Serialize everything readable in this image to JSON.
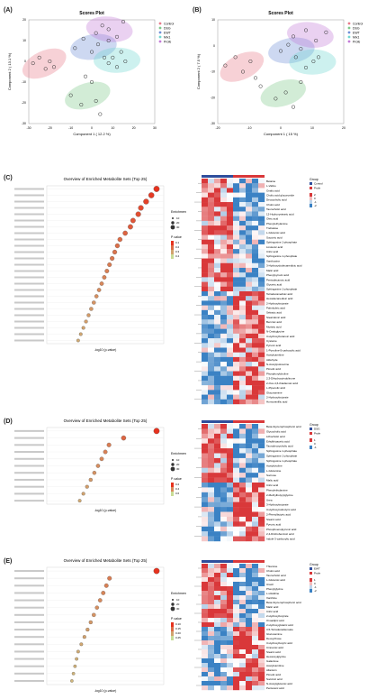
{
  "panels": {
    "A": {
      "letter": "(A)",
      "title": "Scores Plot",
      "xlabel": "Component 1 ( 12.2 %)",
      "ylabel": "Component 2 ( 13.1 %)",
      "legend": [
        "Control",
        "DSG",
        "EWT",
        "Mix1",
        "Profe"
      ],
      "xticks": [
        "-30",
        "-20",
        "-10",
        "0",
        "10",
        "20",
        "30"
      ],
      "yticks": [
        "20",
        "10",
        "0",
        "-10",
        "-20",
        "-30"
      ]
    },
    "B": {
      "letter": "(B)",
      "title": "Scores Plot",
      "xlabel": "Component 1 ( 15 %)",
      "ylabel": "Component 2 ( 7.5 %)",
      "legend": [
        "Control",
        "DSG",
        "EWT",
        "Mix1",
        "Profe"
      ],
      "xticks": [
        "-20",
        "-10",
        "0",
        "10",
        "20"
      ],
      "yticks": [
        "10",
        "0",
        "-10",
        "-20",
        "-30"
      ]
    },
    "C": {
      "letter": "(C)",
      "title": "Overview of Enriched Metabolite Sets (Top 25)",
      "xlabel": "-log10 (p-value)",
      "legend_title": "Enrichment Ratio",
      "pvalue_title": "P-value",
      "size_legend": [
        "10",
        "20",
        "30"
      ],
      "p_legend": [
        "0.1",
        "0.2",
        "0.3",
        "0.4"
      ],
      "heat_legend_title": "Group",
      "heat_groups": [
        "Control",
        "Profe"
      ],
      "heat_scale": [
        "2",
        "0",
        "-1",
        "-2"
      ],
      "metabolites": [
        "Betaine",
        "L-Valine",
        "Oxalic acid",
        "Cholic acid glucoronide",
        "Deoxycholic acid",
        "Cholic acid",
        "Taurocholic acid",
        "12-Hydroxystearic acid",
        "Oleic acid",
        "Phenylethylamine",
        "Trehalose",
        "L-Glutamic acid",
        "Succinic acid",
        "Sphingosine 1-phosphate",
        "Linolenic acid",
        "Citric acid",
        "Sphinganine 1-phosphate",
        "Xanthosine",
        "3-Hydroxydodecanedioic acid",
        "Malic acid",
        "Phenylpyruvic acid",
        "Pentadecanoic acid",
        "Glyceric acid",
        "Sphinganine 1-phosphate",
        "Tetradecanedioic acid",
        "Hexadecanedioic acid",
        "2-Hydroxybutyrate",
        "Palmitoleic acid",
        "Sebacic acid",
        "Stearidonic acid",
        "Benzoic acid",
        "Myristic acid",
        "N-Oxalyglycine",
        "3-Hydroxybutanoic acid",
        "Cysteine",
        "Pyruvic acid",
        "1-Pyrroline-5-carboxylic acid",
        "Acetylcarnitine",
        "Aldehyde",
        "N-Acetylputrescine",
        "Pimelic acid",
        "Phosphorylcholine",
        "2,3-Dihydroxyindolinone",
        "2-Oxo-4,6-thiadienoic acid",
        "L-Pipecolic acid",
        "Glucosamine",
        "2-Hydroxybutyrate",
        "Homovanillic acid"
      ]
    },
    "D": {
      "letter": "(D)",
      "title": "Overview of Enriched Metabolite Sets (Top 25)",
      "xlabel": "-log10 (p-value)",
      "legend_title": "Enrichment Ratio",
      "pvalue_title": "P-value",
      "size_legend": [
        "10",
        "20",
        "30"
      ],
      "p_legend": [
        "0.2",
        "0.4",
        "0.6"
      ],
      "heat_legend_title": "Group",
      "heat_groups": [
        "DSG",
        "Profe"
      ],
      "heat_scale": [
        "1",
        "0",
        "-1"
      ],
      "metabolites": [
        "Beta-Glycerophosphoric acid",
        "Glycocholic acid",
        "Lithocholic acid",
        "Ethylthioacetic acid",
        "Taurodeoxycholic acid",
        "Sphingosine 1-phosphate",
        "Sphinganine 1-phosphate",
        "Sphingosine 1-phosphate",
        "Acetylcholine",
        "L-Glutamine",
        "Sucrose",
        "Malic acid",
        "Citric acid",
        "Phenylethylamine",
        "2-Methylbutyrylglycine",
        "Urea",
        "3-Hydroxybutyrate",
        "3-Hydroxyisobutyric acid",
        "2-Phenylbutyric acid",
        "Stearic acid",
        "Pyruvic acid",
        "Phosphoenolpyruvic acid",
        "2,4-Dinitrobenzoic acid",
        "Indole-3-carboxylic acid"
      ]
    },
    "E": {
      "letter": "(E)",
      "title": "Overview of Enriched Metabolite Sets (Top 25)",
      "xlabel": "-log10 (p-value)",
      "legend_title": "Enrichment",
      "pvalue_title": "P-value",
      "size_legend": [
        "10",
        "20",
        "30"
      ],
      "p_legend": [
        "0.10",
        "0.15",
        "0.20",
        "0.25"
      ],
      "heat_legend_title": "Group",
      "heat_groups": [
        "EWT",
        "Profe"
      ],
      "heat_scale": [
        "1",
        "0",
        "-1",
        "-2"
      ],
      "metabolites": [
        "Thiamine",
        "Cholic acid",
        "Taurocholic acid",
        "L-Glutamic acid",
        "Uracil",
        "Phenylglycine",
        "L-Histidine",
        "Xanthine",
        "Beta-Glycerophosphoric acid",
        "Malic acid",
        "Citric acid",
        "2-Hydroxybutyrate",
        "Oxoadipic acid",
        "2-Hydroxyglutaric acid",
        "3,5-Tetradecadienoate",
        "Glucosamine",
        "Deoxyribose",
        "3-Hydroxybutyric acid",
        "Cinnamic acid",
        "Stearic acid",
        "Hexanoylglycine",
        "Galactose",
        "Acetylcarnitine",
        "Allantoin",
        "Pimelic acid",
        "Succinic acid",
        "N-Acetylglutamic acid",
        "Pentanoic acid"
      ]
    }
  },
  "colors": {
    "control": "#e87a8a",
    "dsg": "#7fc98a",
    "ewt": "#6f8fd8",
    "mix1": "#6fd8d0",
    "profe": "#c27ad8",
    "heat_hi": "#d9383a",
    "heat_lo": "#3b82c4",
    "bar_top": "#2f4e9c",
    "bar_bot": "#d9383a"
  },
  "chart_data": [
    {
      "type": "scatter",
      "title": "Scores Plot",
      "xlabel": "Component 1 ( 12.2 %)",
      "ylabel": "Component 2 ( 13.1 %)",
      "series": [
        {
          "name": "Control",
          "x": [
            -28,
            -25,
            -22,
            -20,
            -18
          ],
          "y": [
            2,
            5,
            -1,
            3,
            0
          ]
        },
        {
          "name": "DSG",
          "x": [
            -10,
            -5,
            -3,
            0,
            2,
            4
          ],
          "y": [
            -15,
            -20,
            -5,
            -8,
            -18,
            -25
          ]
        },
        {
          "name": "EWT",
          "x": [
            -8,
            -4,
            0,
            3,
            6,
            8
          ],
          "y": [
            10,
            15,
            8,
            12,
            5,
            14
          ]
        },
        {
          "name": "Mix1",
          "x": [
            8,
            10,
            12,
            14,
            16
          ],
          "y": [
            2,
            5,
            0,
            8,
            3
          ]
        },
        {
          "name": "Profe",
          "x": [
            2,
            5,
            8,
            12,
            15
          ],
          "y": [
            18,
            22,
            20,
            16,
            24
          ]
        }
      ]
    },
    {
      "type": "scatter",
      "title": "Scores Plot",
      "xlabel": "Component 1 ( 15 %)",
      "ylabel": "Component 2 ( 7.5 %)",
      "series": [
        {
          "name": "Control",
          "x": [
            -22,
            -18,
            -15,
            -12,
            -10
          ],
          "y": [
            -2,
            2,
            -5,
            0,
            -8
          ]
        },
        {
          "name": "DSG",
          "x": [
            -8,
            -2,
            2,
            5,
            8
          ],
          "y": [
            -12,
            -18,
            -15,
            -22,
            -10
          ]
        },
        {
          "name": "EWT",
          "x": [
            0,
            3,
            6,
            8
          ],
          "y": [
            5,
            8,
            2,
            6
          ]
        },
        {
          "name": "Mix1",
          "x": [
            10,
            13,
            15
          ],
          "y": [
            -3,
            0,
            2
          ]
        },
        {
          "name": "Profe",
          "x": [
            5,
            10,
            14,
            18
          ],
          "y": [
            12,
            15,
            10,
            14
          ]
        }
      ]
    },
    {
      "type": "scatter",
      "title": "Overview of Enriched Metabolite Sets (Top 25)",
      "xlabel": "-log10 (p-value)",
      "values": [
        4.2,
        4.0,
        3.8,
        3.6,
        3.5,
        3.3,
        3.2,
        3.0,
        2.8,
        2.7,
        2.6,
        2.5,
        2.4,
        2.3,
        2.2,
        2.1,
        2.0,
        1.9,
        1.8,
        1.7,
        1.6,
        1.5,
        1.4,
        1.3,
        1.2
      ]
    },
    {
      "type": "scatter",
      "title": "Overview of Enriched Metabolite Sets (Top 25)",
      "xlabel": "-log10 (p-value)",
      "values": [
        3.0,
        2.1,
        1.7,
        1.6,
        1.5,
        1.4,
        1.3,
        1.2,
        1.1,
        1.0,
        0.9
      ]
    },
    {
      "type": "scatter",
      "title": "Overview of Enriched Metabolite Sets (Top 25)",
      "xlabel": "-log10 (p-value)",
      "values": [
        3.5,
        2.0,
        1.9,
        1.8,
        1.7,
        1.6,
        1.5,
        1.4,
        1.3,
        1.2,
        1.1,
        1.0,
        0.95,
        0.9,
        0.85,
        0.8
      ]
    }
  ]
}
